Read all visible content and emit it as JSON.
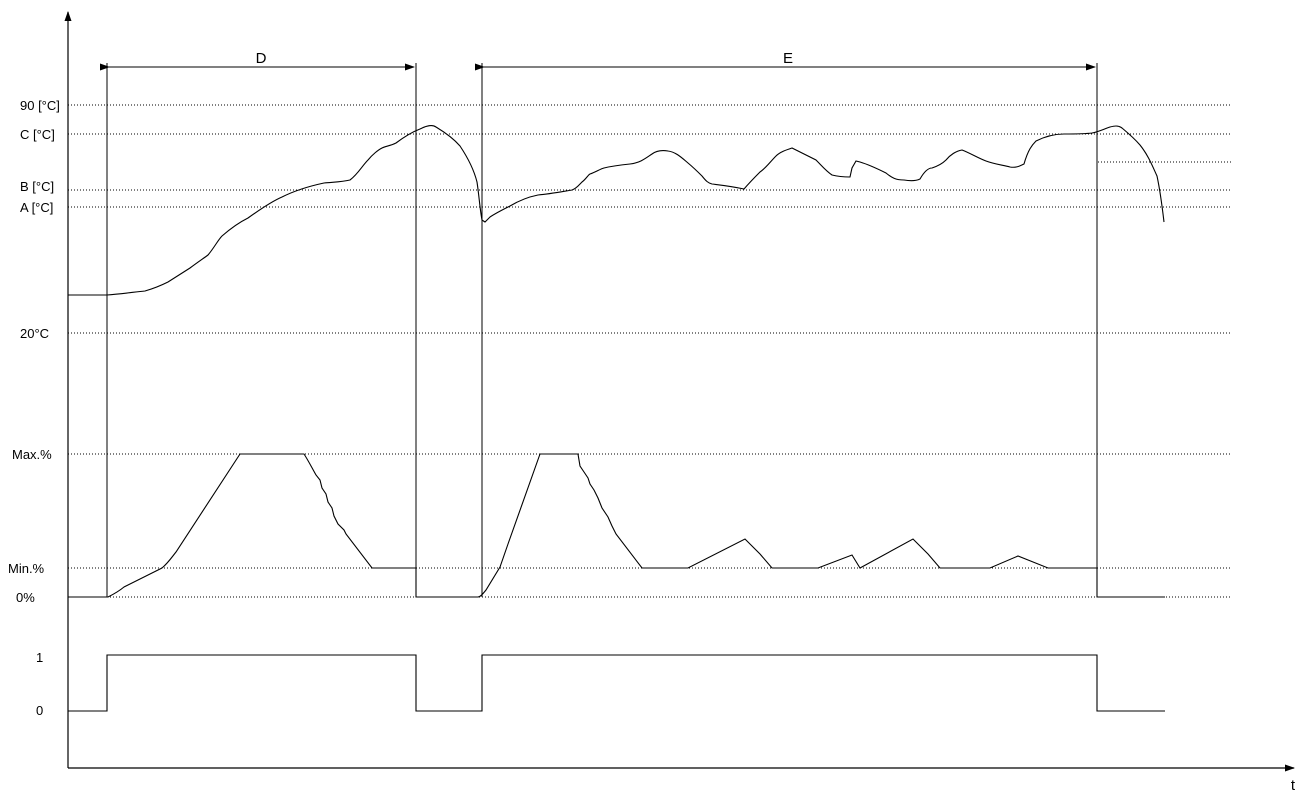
{
  "axis": {
    "x_label": "t"
  },
  "levels": [
    {
      "id": "level-90",
      "label": "90 [°C]"
    },
    {
      "id": "level-c",
      "label": "C [°C]"
    },
    {
      "id": "level-unlabeled",
      "label": ""
    },
    {
      "id": "level-b",
      "label": "B [°C]"
    },
    {
      "id": "level-a",
      "label": "A [°C]"
    },
    {
      "id": "level-20",
      "label": "20°C"
    },
    {
      "id": "level-max",
      "label": "Max.%"
    },
    {
      "id": "level-min",
      "label": "Min.%"
    },
    {
      "id": "level-0pct",
      "label": "0%"
    },
    {
      "id": "level-1",
      "label": "1"
    },
    {
      "id": "level-0",
      "label": "0"
    }
  ],
  "phases": [
    {
      "id": "phase-d",
      "label": "D"
    },
    {
      "id": "phase-e",
      "label": "E"
    }
  ],
  "signals": [
    "temperature-curve",
    "output-percentage-curve",
    "on-off-signal"
  ]
}
